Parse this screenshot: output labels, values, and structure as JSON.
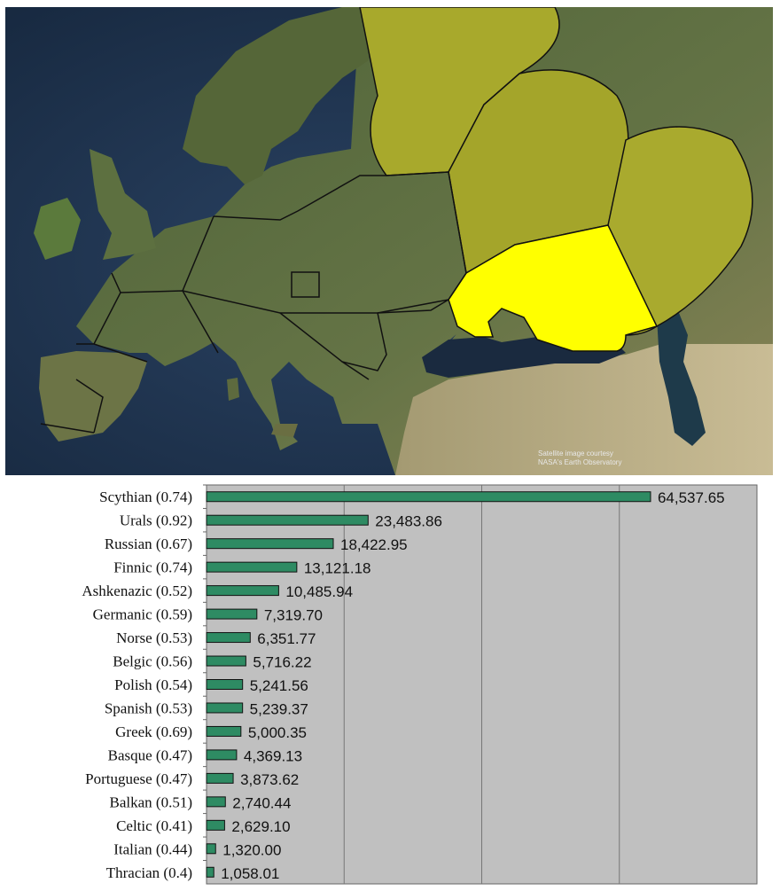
{
  "map": {
    "credit_line1": "Satellite image courtesy",
    "credit_line2": "NASA's Earth Observatory"
  },
  "colors": {
    "ocean": "#1f3450",
    "land": "#5b6a3c",
    "scythian_region": "#ffff00",
    "other_regions": "#a8a92c",
    "bar_fill": "#2e8b63",
    "plot_background": "#c0c0c0"
  },
  "chart_data": {
    "type": "bar",
    "orientation": "horizontal",
    "categories": [
      "Scythian (0.74)",
      "Urals (0.92)",
      "Russian (0.67)",
      "Finnic (0.74)",
      "Ashkenazic (0.52)",
      "Germanic (0.59)",
      "Norse (0.53)",
      "Belgic (0.56)",
      "Polish (0.54)",
      "Spanish (0.53)",
      "Greek (0.69)",
      "Basque (0.47)",
      "Portuguese (0.47)",
      "Balkan (0.51)",
      "Celtic (0.41)",
      "Italian (0.44)",
      "Thracian (0.4)"
    ],
    "values": [
      64537.65,
      23483.86,
      18422.95,
      13121.18,
      10485.94,
      7319.7,
      6351.77,
      5716.22,
      5241.56,
      5239.37,
      5000.35,
      4369.13,
      3873.62,
      2740.44,
      2629.1,
      1320.0,
      1058.01
    ],
    "value_labels": [
      "64,537.65",
      "23,483.86",
      "18,422.95",
      "13,121.18",
      "10,485.94",
      "7,319.70",
      "6,351.77",
      "5,716.22",
      "5,241.56",
      "5,239.37",
      "5,000.35",
      "4,369.13",
      "3,873.62",
      "2,740.44",
      "2,629.10",
      "1,320.00",
      "1,058.01"
    ],
    "xlim": [
      0,
      80000
    ],
    "x_gridlines": [
      20000,
      40000,
      60000
    ],
    "grid": true,
    "title": "",
    "xlabel": "",
    "ylabel": ""
  }
}
